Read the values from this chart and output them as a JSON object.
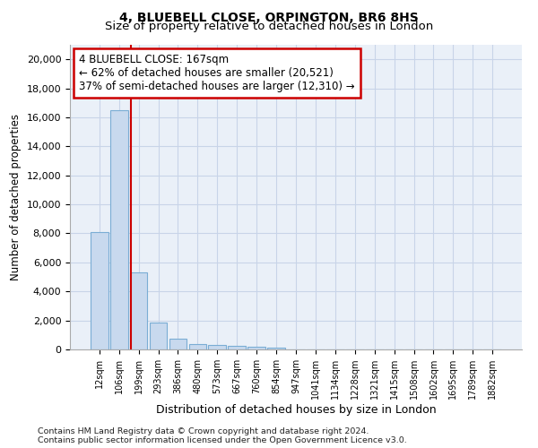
{
  "title1": "4, BLUEBELL CLOSE, ORPINGTON, BR6 8HS",
  "title2": "Size of property relative to detached houses in London",
  "xlabel": "Distribution of detached houses by size in London",
  "ylabel": "Number of detached properties",
  "categories": [
    "12sqm",
    "106sqm",
    "199sqm",
    "293sqm",
    "386sqm",
    "480sqm",
    "573sqm",
    "667sqm",
    "760sqm",
    "854sqm",
    "947sqm",
    "1041sqm",
    "1134sqm",
    "1228sqm",
    "1321sqm",
    "1415sqm",
    "1508sqm",
    "1602sqm",
    "1695sqm",
    "1789sqm",
    "1882sqm"
  ],
  "bar_heights": [
    8100,
    16500,
    5300,
    1850,
    750,
    370,
    280,
    220,
    160,
    130,
    0,
    0,
    0,
    0,
    0,
    0,
    0,
    0,
    0,
    0,
    0
  ],
  "bar_color": "#c8d9ee",
  "bar_edge_color": "#7aadd4",
  "annotation_box_text": "4 BLUEBELL CLOSE: 167sqm\n← 62% of detached houses are smaller (20,521)\n37% of semi-detached houses are larger (12,310) →",
  "annotation_box_color": "#ffffff",
  "annotation_box_edge": "#cc0000",
  "vertical_line_x": 1.62,
  "vertical_line_color": "#cc0000",
  "ylim": [
    0,
    21000
  ],
  "yticks": [
    0,
    2000,
    4000,
    6000,
    8000,
    10000,
    12000,
    14000,
    16000,
    18000,
    20000
  ],
  "grid_color": "#c8d4e8",
  "bg_color": "#ffffff",
  "plot_bg_color": "#eaf0f8",
  "footer1": "Contains HM Land Registry data © Crown copyright and database right 2024.",
  "footer2": "Contains public sector information licensed under the Open Government Licence v3.0."
}
